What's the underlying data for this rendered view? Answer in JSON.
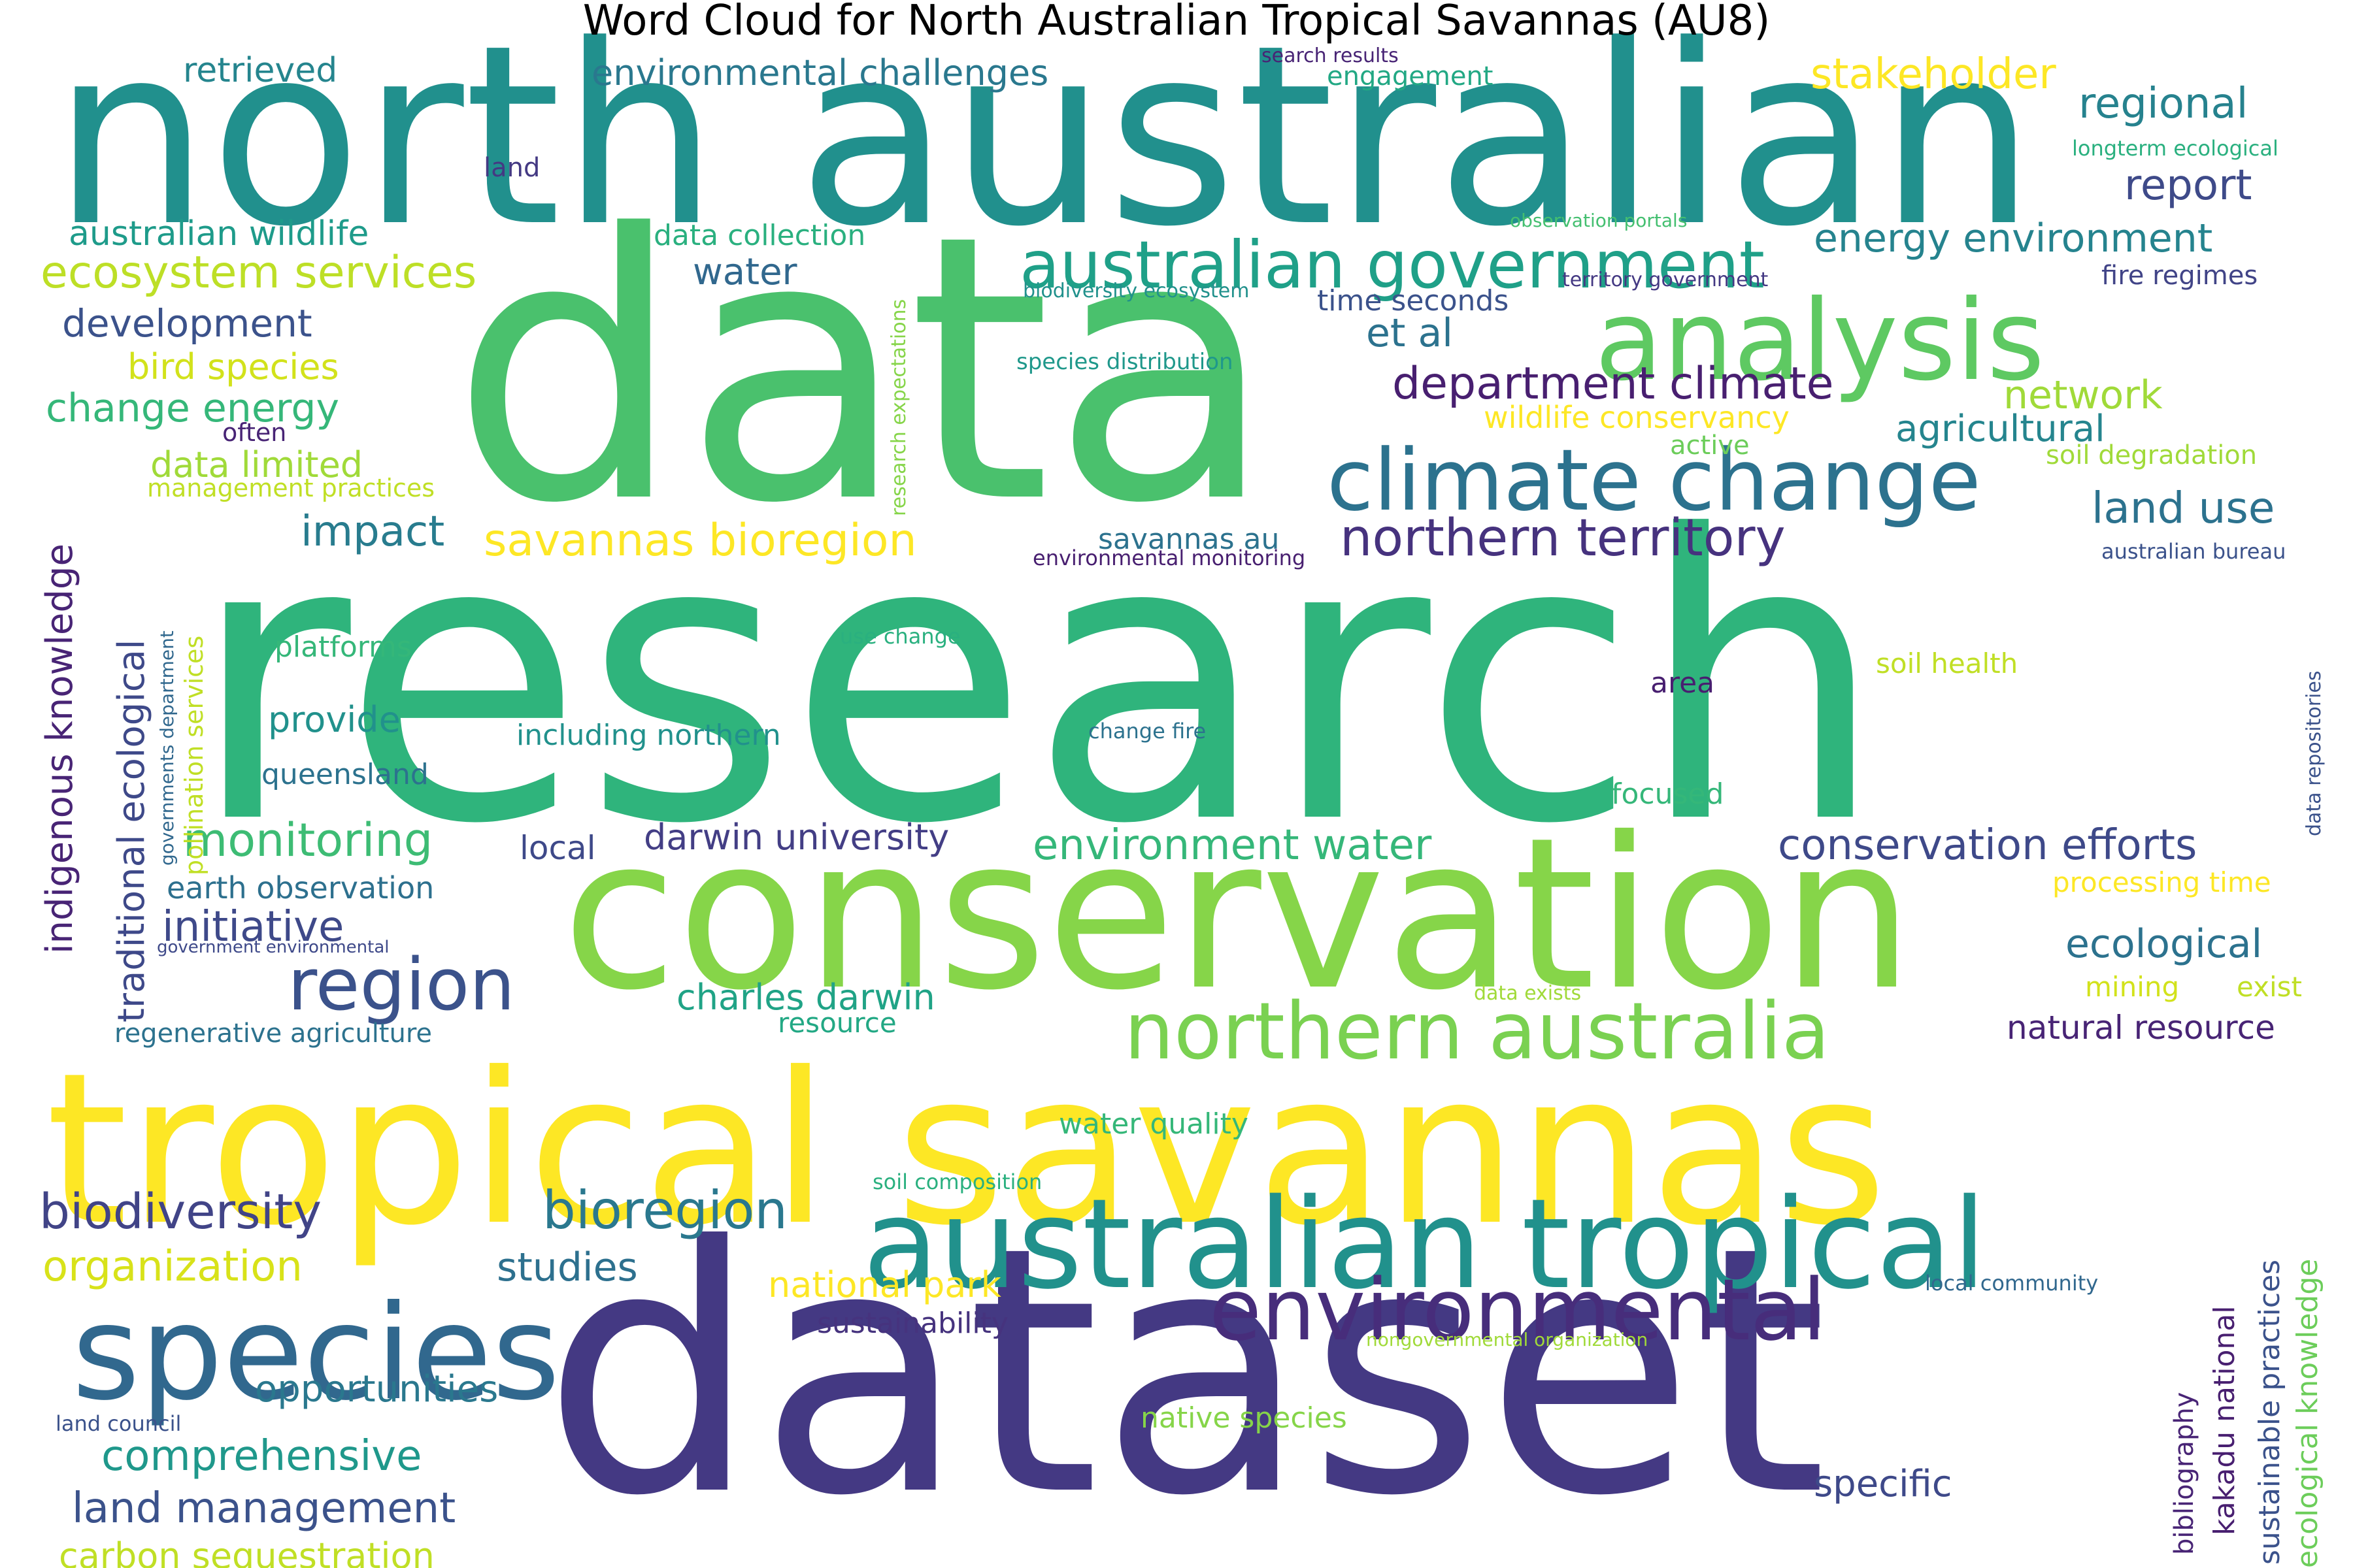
{
  "title": "Word Cloud for North Australian Tropical Savannas (AU8)",
  "words": [
    {
      "text": "north australian",
      "color": "#21908d"
    },
    {
      "text": "data",
      "color": "#4ac16d"
    },
    {
      "text": "research",
      "color": "#2fb47c"
    },
    {
      "text": "conservation",
      "color": "#86d549"
    },
    {
      "text": "tropical savannas",
      "color": "#fde725"
    },
    {
      "text": "dataset",
      "color": "#443983"
    },
    {
      "text": "australian tropical",
      "color": "#21918c"
    },
    {
      "text": "species",
      "color": "#31688e"
    },
    {
      "text": "environmental",
      "color": "#472d7b"
    },
    {
      "text": "analysis",
      "color": "#5ec962"
    },
    {
      "text": "climate change",
      "color": "#2c728e"
    },
    {
      "text": "northern australia",
      "color": "#7ad151"
    },
    {
      "text": "australian government",
      "color": "#1fa088"
    },
    {
      "text": "region",
      "color": "#3b528b"
    },
    {
      "text": "monitoring",
      "color": "#3dbc74"
    },
    {
      "text": "bioregion",
      "color": "#2a788e"
    },
    {
      "text": "biodiversity",
      "color": "#414487"
    },
    {
      "text": "northern territory",
      "color": "#46327e"
    },
    {
      "text": "savannas bioregion",
      "color": "#fde725"
    },
    {
      "text": "environment water",
      "color": "#35b779"
    },
    {
      "text": "conservation efforts",
      "color": "#3e4989"
    },
    {
      "text": "ecosystem services",
      "color": "#bddf26"
    },
    {
      "text": "stakeholder",
      "color": "#fde725"
    },
    {
      "text": "regional",
      "color": "#26828e"
    },
    {
      "text": "report",
      "color": "#3e4a89"
    },
    {
      "text": "energy environment",
      "color": "#25838e"
    },
    {
      "text": "environmental challenges",
      "color": "#2a788e"
    },
    {
      "text": "retrieved",
      "color": "#25858e"
    },
    {
      "text": "australian wildlife",
      "color": "#1e9b8a"
    },
    {
      "text": "development",
      "color": "#3b528b"
    },
    {
      "text": "bird species",
      "color": "#d2e21b"
    },
    {
      "text": "change energy",
      "color": "#35b779"
    },
    {
      "text": "data limited",
      "color": "#a0da39"
    },
    {
      "text": "impact",
      "color": "#287c8e"
    },
    {
      "text": "initiative",
      "color": "#3e4989"
    },
    {
      "text": "organization",
      "color": "#d8e219"
    },
    {
      "text": "studies",
      "color": "#2d708e"
    },
    {
      "text": "opportunities",
      "color": "#2a788e"
    },
    {
      "text": "comprehensive",
      "color": "#1f988b"
    },
    {
      "text": "land management",
      "color": "#3b528b"
    },
    {
      "text": "carbon sequestration",
      "color": "#c0df25"
    },
    {
      "text": "national park",
      "color": "#fde725"
    },
    {
      "text": "sustainability",
      "color": "#46337e"
    },
    {
      "text": "charles darwin",
      "color": "#20a386"
    },
    {
      "text": "darwin university",
      "color": "#433e85"
    },
    {
      "text": "department climate",
      "color": "#481f70"
    },
    {
      "text": "network",
      "color": "#a0da39"
    },
    {
      "text": "agricultural",
      "color": "#25858e"
    },
    {
      "text": "land use",
      "color": "#2c728e"
    },
    {
      "text": "ecological",
      "color": "#2c728e"
    },
    {
      "text": "natural resource",
      "color": "#482475"
    },
    {
      "text": "specific",
      "color": "#3e4989"
    },
    {
      "text": "et al",
      "color": "#2c728e"
    },
    {
      "text": "water",
      "color": "#31688e"
    },
    {
      "text": "data collection",
      "color": "#2ab07f"
    },
    {
      "text": "land",
      "color": "#443983"
    },
    {
      "text": "search results",
      "color": "#482475"
    },
    {
      "text": "engagement",
      "color": "#22a884"
    },
    {
      "text": "longterm ecological",
      "color": "#2ab07f"
    },
    {
      "text": "fire regimes",
      "color": "#414487"
    },
    {
      "text": "territory government",
      "color": "#443983"
    },
    {
      "text": "observation portals",
      "color": "#44bf70"
    },
    {
      "text": "biodiversity ecosystem",
      "color": "#21918c"
    },
    {
      "text": "time seconds",
      "color": "#3b528b"
    },
    {
      "text": "species distribution",
      "color": "#1f988b"
    },
    {
      "text": "wildlife conservancy",
      "color": "#fde725"
    },
    {
      "text": "active",
      "color": "#6ccd5a"
    },
    {
      "text": "soil degradation",
      "color": "#a0da39"
    },
    {
      "text": "savannas au",
      "color": "#2c728e"
    },
    {
      "text": "environmental monitoring",
      "color": "#481f70"
    },
    {
      "text": "australian bureau",
      "color": "#3b528b"
    },
    {
      "text": "use change",
      "color": "#2ab07f"
    },
    {
      "text": "soil health",
      "color": "#c0df25"
    },
    {
      "text": "area",
      "color": "#481f70"
    },
    {
      "text": "change fire",
      "color": "#2c728e"
    },
    {
      "text": "including northern",
      "color": "#21918c"
    },
    {
      "text": "focused",
      "color": "#35b779"
    },
    {
      "text": "platforms",
      "color": "#35b779"
    },
    {
      "text": "provide",
      "color": "#21918c"
    },
    {
      "text": "queensland",
      "color": "#2c728e"
    },
    {
      "text": "local",
      "color": "#3e4989"
    },
    {
      "text": "earth observation",
      "color": "#2d708e"
    },
    {
      "text": "management practices",
      "color": "#c0df25"
    },
    {
      "text": "often",
      "color": "#482475"
    },
    {
      "text": "government environmental",
      "color": "#3e4989"
    },
    {
      "text": "regenerative agriculture",
      "color": "#2c728e"
    },
    {
      "text": "resource",
      "color": "#22a884"
    },
    {
      "text": "water quality",
      "color": "#35b779"
    },
    {
      "text": "soil composition",
      "color": "#2ab07f"
    },
    {
      "text": "processing time",
      "color": "#fde725"
    },
    {
      "text": "mining",
      "color": "#d2e21b"
    },
    {
      "text": "exist",
      "color": "#c0df25"
    },
    {
      "text": "data exists",
      "color": "#a0da39"
    },
    {
      "text": "local community",
      "color": "#31688e"
    },
    {
      "text": "nongovernmental organization",
      "color": "#a0da39"
    },
    {
      "text": "native species",
      "color": "#86d549"
    },
    {
      "text": "land council",
      "color": "#3b528b"
    },
    {
      "text": "indigenous knowledge",
      "color": "#482475"
    },
    {
      "text": "traditional ecological",
      "color": "#3e4989"
    },
    {
      "text": "pollination services",
      "color": "#c0df25"
    },
    {
      "text": "governments department",
      "color": "#31688e"
    },
    {
      "text": "research expectations",
      "color": "#86d549"
    },
    {
      "text": "data repositories",
      "color": "#3b528b"
    },
    {
      "text": "bibliography",
      "color": "#482475"
    },
    {
      "text": "kakadu national",
      "color": "#481f70"
    },
    {
      "text": "sustainable practices",
      "color": "#3b528b"
    },
    {
      "text": "ecological knowledge",
      "color": "#6ccd5a"
    }
  ]
}
